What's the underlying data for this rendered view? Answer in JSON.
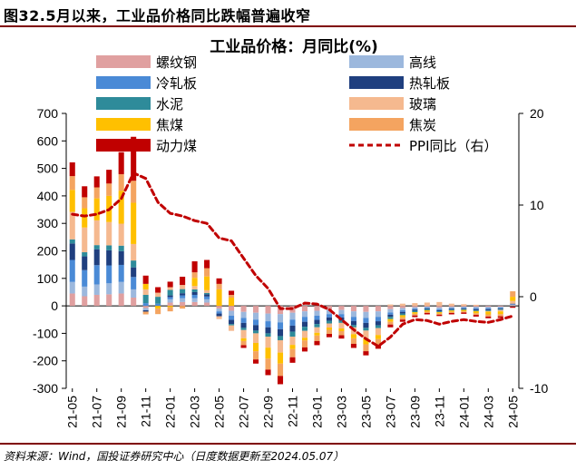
{
  "figure": {
    "title": "图32.5月以来，工业品价格同比跌幅普遍收窄",
    "source": "资料来源：Wind，国投证券研究中心（日度数据更新至2024.05.07）"
  },
  "chart_data": {
    "type": "bar",
    "stacked": true,
    "title": "工业品价格：月同比(%)",
    "x_tick_labels": [
      "21-05",
      "21-07",
      "21-09",
      "21-11",
      "22-01",
      "22-03",
      "22-05",
      "22-07",
      "22-09",
      "22-11",
      "23-01",
      "23-03",
      "23-05",
      "23-07",
      "23-09",
      "23-11",
      "24-01",
      "24-03",
      "24-05"
    ],
    "categories": [
      "21-05",
      "21-06",
      "21-07",
      "21-08",
      "21-09",
      "21-10",
      "21-11",
      "21-12",
      "22-01",
      "22-02",
      "22-03",
      "22-04",
      "22-05",
      "22-06",
      "22-07",
      "22-08",
      "22-09",
      "22-10",
      "22-11",
      "22-12",
      "23-01",
      "23-02",
      "23-03",
      "23-04",
      "23-05",
      "23-06",
      "23-07",
      "23-08",
      "23-09",
      "23-10",
      "23-11",
      "23-12",
      "24-01",
      "24-02",
      "24-03",
      "24-04",
      "24-05"
    ],
    "ylim_left": [
      -300,
      700
    ],
    "yticks_left": [
      -300,
      -200,
      -100,
      0,
      100,
      200,
      300,
      400,
      500,
      600,
      700
    ],
    "ylim_right": [
      -10,
      20
    ],
    "yticks_right": [
      -10,
      0,
      10,
      20
    ],
    "legend_position": "top",
    "series": [
      {
        "name": "螺纹钢",
        "color": "#e0a0a0",
        "axis": "left",
        "values": [
          45,
          35,
          40,
          42,
          45,
          30,
          -8,
          0,
          12,
          14,
          14,
          12,
          -10,
          -18,
          -22,
          -25,
          -28,
          -30,
          -25,
          -20,
          -18,
          -15,
          -15,
          -20,
          -22,
          -20,
          -12,
          -8,
          -5,
          -3,
          -6,
          -4,
          -3,
          -4,
          -4,
          -3,
          2
        ]
      },
      {
        "name": "高线",
        "color": "#9cb8dd",
        "axis": "left",
        "values": [
          42,
          35,
          38,
          40,
          42,
          30,
          -8,
          0,
          12,
          14,
          14,
          12,
          -10,
          -18,
          -22,
          -25,
          -28,
          -30,
          -25,
          -20,
          -18,
          -15,
          -15,
          -20,
          -22,
          -20,
          -12,
          -8,
          -5,
          -3,
          -6,
          -4,
          -3,
          -4,
          -4,
          -3,
          2
        ]
      },
      {
        "name": "冷轧板",
        "color": "#4a8ad6",
        "axis": "left",
        "values": [
          80,
          60,
          70,
          65,
          62,
          45,
          10,
          8,
          8,
          10,
          12,
          10,
          -8,
          -15,
          -18,
          -20,
          -22,
          -25,
          -22,
          -18,
          -15,
          -12,
          -12,
          -15,
          -18,
          -16,
          -8,
          -6,
          -4,
          -3,
          -4,
          -3,
          -3,
          -4,
          -4,
          -3,
          2
        ]
      },
      {
        "name": "热轧板",
        "color": "#1f3f7f",
        "axis": "left",
        "values": [
          60,
          50,
          58,
          55,
          50,
          35,
          -5,
          0,
          6,
          8,
          10,
          8,
          -10,
          -15,
          -18,
          -20,
          -22,
          -25,
          -22,
          -18,
          -15,
          -12,
          -12,
          -15,
          -18,
          -15,
          -8,
          -6,
          -4,
          -3,
          -4,
          -3,
          -3,
          -4,
          -4,
          -3,
          2
        ]
      },
      {
        "name": "水泥",
        "color": "#2e8b9a",
        "axis": "left",
        "values": [
          15,
          15,
          15,
          18,
          20,
          25,
          30,
          25,
          20,
          15,
          10,
          5,
          0,
          -5,
          -8,
          -10,
          -12,
          -15,
          -18,
          -15,
          -12,
          -10,
          -8,
          -8,
          -10,
          -10,
          -8,
          -6,
          -5,
          -4,
          -3,
          -3,
          -3,
          -3,
          -3,
          -3,
          -2
        ]
      },
      {
        "name": "玻璃",
        "color": "#f5b98f",
        "axis": "left",
        "values": [
          100,
          90,
          90,
          85,
          80,
          60,
          20,
          15,
          10,
          15,
          12,
          10,
          -10,
          -20,
          -30,
          -35,
          -40,
          -45,
          -30,
          -25,
          -20,
          -15,
          -20,
          -25,
          -30,
          -25,
          5,
          8,
          10,
          12,
          14,
          8,
          6,
          4,
          -2,
          -5,
          10
        ]
      },
      {
        "name": "焦煤",
        "color": "#ffc000",
        "axis": "left",
        "values": [
          80,
          70,
          80,
          95,
          120,
          150,
          20,
          -10,
          -5,
          0,
          30,
          50,
          60,
          30,
          -10,
          -30,
          -40,
          -40,
          -15,
          -10,
          -10,
          -8,
          -10,
          -15,
          -20,
          -15,
          -10,
          -8,
          -6,
          -5,
          -5,
          -5,
          -5,
          -8,
          -10,
          -10,
          15
        ]
      },
      {
        "name": "焦炭",
        "color": "#f4a460",
        "axis": "left",
        "values": [
          50,
          40,
          40,
          45,
          60,
          80,
          -10,
          -20,
          -15,
          -10,
          20,
          30,
          20,
          10,
          -15,
          -30,
          -40,
          -45,
          -30,
          -25,
          -20,
          -15,
          -15,
          -20,
          -25,
          -20,
          -10,
          -8,
          -6,
          -5,
          -4,
          -4,
          -4,
          -6,
          -8,
          -8,
          20
        ]
      },
      {
        "name": "动力煤",
        "color": "#c00000",
        "axis": "left",
        "values": [
          50,
          40,
          40,
          50,
          80,
          160,
          30,
          20,
          20,
          30,
          40,
          30,
          20,
          15,
          -10,
          -15,
          -20,
          -30,
          -20,
          -15,
          -15,
          -12,
          -12,
          -15,
          -15,
          -15,
          -10,
          -8,
          -6,
          -5,
          -5,
          -5,
          -5,
          -6,
          -6,
          -6,
          -5
        ]
      },
      {
        "name": "PPI同比（右）",
        "color": "#c00000",
        "axis": "right",
        "type": "line",
        "style": "dashed",
        "values": [
          9.0,
          8.8,
          9.0,
          9.5,
          10.7,
          13.5,
          12.9,
          10.3,
          9.1,
          8.8,
          8.3,
          8.0,
          6.4,
          6.1,
          4.2,
          2.3,
          0.9,
          -1.3,
          -1.3,
          -0.7,
          -0.8,
          -1.4,
          -2.5,
          -3.6,
          -4.6,
          -5.4,
          -4.4,
          -3.0,
          -2.5,
          -2.6,
          -3.0,
          -2.7,
          -2.5,
          -2.7,
          -2.8,
          -2.5,
          -2.1
        ]
      }
    ]
  }
}
